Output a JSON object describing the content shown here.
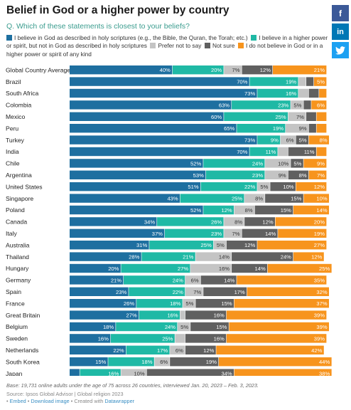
{
  "title": "Belief in God or a higher power by country",
  "subtitle": "Q. Which of these statements is closest to your beliefs?",
  "colors": {
    "scriptures": "#1e6fa0",
    "higher_power": "#1fb9a5",
    "prefer_not": "#c4c4c4",
    "not_sure": "#606060",
    "no_belief": "#f7941d"
  },
  "legend": [
    {
      "label": "I believe in God as described in holy scriptures (e.g., the Bible, the Quran, the Torah; etc.)",
      "color": "#1e6fa0"
    },
    {
      "label": "I believe in a higher power or spirit, but not in God as described in holy scriptures",
      "color": "#1fb9a5"
    },
    {
      "label": "Prefer not to say",
      "color": "#c4c4c4"
    },
    {
      "label": "Not sure",
      "color": "#606060"
    },
    {
      "label": "I do not believe in God or in a higher power or spirit of any kind",
      "color": "#f7941d"
    }
  ],
  "social": {
    "facebook_icon": "facebook-icon",
    "facebook_glyph": "f",
    "linkedin_icon": "linkedin-icon",
    "linkedin_glyph": "in",
    "twitter_icon": "twitter-icon"
  },
  "chart_data": {
    "type": "bar",
    "orientation": "horizontal",
    "stacked": true,
    "unit": "%",
    "xlim": [
      0,
      100
    ],
    "grid": false,
    "legend_position": "top",
    "categories": [
      "Global Country Average",
      "Brazil",
      "South Africa",
      "Colombia",
      "Mexico",
      "Peru",
      "Turkey",
      "India",
      "Chile",
      "Argentina",
      "United States",
      "Singapore",
      "Poland",
      "Canada",
      "Italy",
      "Australia",
      "Thailand",
      "Hungary",
      "Germany",
      "Spain",
      "France",
      "Great Britain",
      "Belgium",
      "Sweden",
      "Netherlands",
      "South Korea",
      "Japan"
    ],
    "series": [
      {
        "name": "I believe in God as described in holy scriptures (e.g., the Bible, the Quran, the Torah; etc.)",
        "color": "#1e6fa0",
        "values": [
          40,
          70,
          73,
          63,
          60,
          65,
          73,
          70,
          52,
          53,
          51,
          43,
          52,
          34,
          37,
          31,
          28,
          20,
          21,
          23,
          26,
          27,
          18,
          16,
          22,
          15,
          4
        ]
      },
      {
        "name": "I believe in a higher power or spirit, but not in God as described in holy scriptures",
        "color": "#1fb9a5",
        "values": [
          20,
          19,
          16,
          23,
          25,
          19,
          9,
          11,
          24,
          23,
          22,
          25,
          12,
          26,
          23,
          25,
          21,
          27,
          24,
          22,
          18,
          16,
          24,
          25,
          17,
          18,
          16
        ]
      },
      {
        "name": "Prefer not to say",
        "color": "#c4c4c4",
        "values": [
          7,
          3,
          4,
          5,
          7,
          9,
          6,
          4,
          10,
          9,
          5,
          8,
          8,
          8,
          7,
          5,
          14,
          16,
          6,
          7,
          5,
          2,
          5,
          4,
          6,
          6,
          10
        ]
      },
      {
        "name": "Not sure",
        "color": "#606060",
        "values": [
          12,
          3,
          4,
          3,
          4,
          3,
          5,
          11,
          5,
          8,
          10,
          15,
          15,
          12,
          14,
          12,
          24,
          14,
          14,
          17,
          15,
          16,
          15,
          16,
          12,
          19,
          34
        ]
      },
      {
        "name": "I do not believe in God or in a higher power or spirit of any kind",
        "color": "#f7941d",
        "values": [
          21,
          5,
          3,
          6,
          4,
          4,
          8,
          4,
          9,
          7,
          12,
          10,
          14,
          20,
          19,
          27,
          12,
          25,
          35,
          32,
          37,
          39,
          39,
          39,
          42,
          44,
          38
        ]
      }
    ],
    "min_label_value": 5
  },
  "footer": {
    "base": "Base: 19,731 online adults under the age of 75 across 26 countries, interviewed Jan. 20, 2023 – Feb. 3, 2023.",
    "source": "Source: Ipsos Global Advisor | Global religion 2023",
    "embed": "Embed",
    "download": "Download image",
    "created": "Created with",
    "datawrapper": "Datawrapper"
  }
}
